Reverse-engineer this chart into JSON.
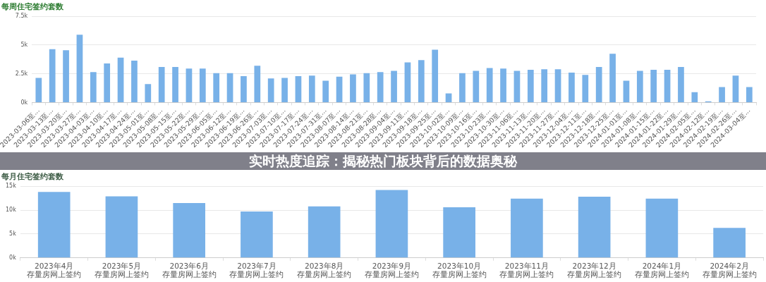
{
  "chart_data": [
    {
      "type": "bar",
      "title": "每周住宅签约套数",
      "annotations": [
        "实时热度追踪：揭秘热门板块背后的数据奥秘"
      ],
      "categories": [
        "2023-03-06至...",
        "2023-03-13至...",
        "2023-03-20至...",
        "2023-03-27至...",
        "2023-04-03至...",
        "2023-04-10至...",
        "2023-04-17至...",
        "2023-04-24至...",
        "2023-05-01至...",
        "2023-05-08至...",
        "2023-05-15至...",
        "2023-05-22至...",
        "2023-05-29至...",
        "2023-06-05至...",
        "2023-06-12至...",
        "2023-06-19至...",
        "2023-06-26至...",
        "2023-07-03至...",
        "2023-07-10至...",
        "2023-07-17至...",
        "2023-07-24至...",
        "2023-07-31至...",
        "2023-08-07至...",
        "2023-08-14至...",
        "2023-08-21至...",
        "2023-08-28至...",
        "2023-09-04至...",
        "2023-09-11至...",
        "2023-09-18至...",
        "2023-09-25至...",
        "2023-10-02至...",
        "2023-10-09至...",
        "2023-10-16至...",
        "2023-10-23至...",
        "2023-10-30至...",
        "2023-11-06至...",
        "2023-11-13至...",
        "2023-11-20至...",
        "2023-11-27至...",
        "2023-12-04至...",
        "2023-12-11至...",
        "2023-12-18至...",
        "2023-12-25至...",
        "2024-01-01至...",
        "2024-01-08至...",
        "2024-01-15至...",
        "2024-01-22至...",
        "2024-01-29至...",
        "2024-02-05至...",
        "2024-02-12至...",
        "2024-02-19至...",
        "2024-02-26至...",
        "2024-03-04至..."
      ],
      "values": [
        2150,
        4650,
        4550,
        5900,
        2650,
        3400,
        3900,
        3650,
        1600,
        3100,
        3100,
        2950,
        2950,
        2550,
        2550,
        2300,
        3200,
        2100,
        2150,
        2300,
        2350,
        1900,
        2250,
        2450,
        2550,
        2650,
        2750,
        3500,
        3700,
        4600,
        800,
        2550,
        2750,
        3000,
        2950,
        2750,
        2850,
        2900,
        2900,
        2600,
        2400,
        3100,
        4250,
        1900,
        2750,
        2850,
        2850,
        3100,
        900,
        100,
        1350,
        2350,
        1350
      ],
      "color": "#78b1e8",
      "ylim": [
        0,
        7500
      ],
      "yticks": [
        {
          "value": 0,
          "label": "0k"
        },
        {
          "value": 2500,
          "label": "2.5k"
        },
        {
          "value": 5000,
          "label": "5k"
        },
        {
          "value": 7500,
          "label": "7.5k"
        }
      ],
      "grid": "y"
    },
    {
      "type": "bar",
      "title": "每月住宅签约套数",
      "categories": [
        "2023年4月存量房网上签约",
        "2023年5月存量房网上签约",
        "2023年6月存量房网上签约",
        "2023年7月存量房网上签约",
        "2023年8月存量房网上签约",
        "2023年9月存量房网上签约",
        "2023年10月存量房网上签约",
        "2023年11月存量房网上签约",
        "2023年12月存量房网上签约",
        "2024年1月存量房网上签约",
        "2024年2月存量房网上签约"
      ],
      "values": [
        13800,
        12900,
        11500,
        9700,
        10800,
        14200,
        10600,
        12400,
        12800,
        12400,
        6300
      ],
      "color": "#78b1e8",
      "ylim": [
        0,
        15000
      ],
      "yticks": [
        {
          "value": 0,
          "label": "0k"
        },
        {
          "value": 5000,
          "label": "5k"
        },
        {
          "value": 10000,
          "label": "10k"
        },
        {
          "value": 15000,
          "label": "15k"
        }
      ],
      "grid": "y"
    }
  ]
}
